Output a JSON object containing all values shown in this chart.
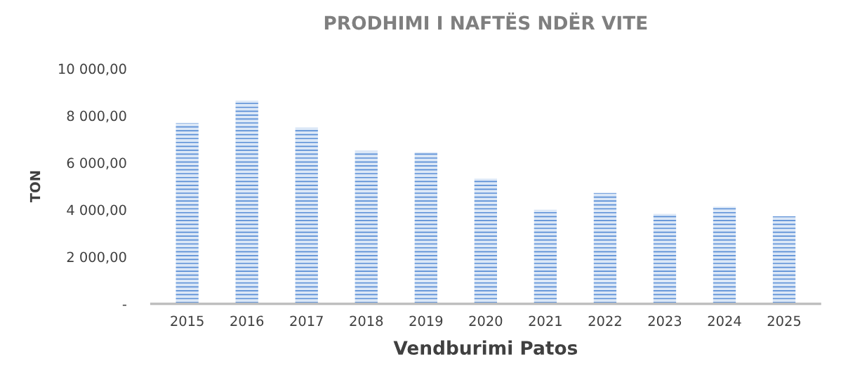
{
  "chart_data": {
    "type": "bar",
    "title": "PRODHIMI I NAFTËS NDËR VITE",
    "xlabel": "Vendburimi Patos",
    "ylabel": "TON",
    "categories": [
      "2015",
      "2016",
      "2017",
      "2018",
      "2019",
      "2020",
      "2021",
      "2022",
      "2023",
      "2024",
      "2025"
    ],
    "values": [
      7680,
      8640,
      7490,
      6500,
      6440,
      5320,
      4000,
      4710,
      3820,
      4130,
      3720
    ],
    "color": "#5b8fd6",
    "ylim": [
      0,
      10000
    ],
    "yticks": [
      {
        "value": 0,
        "label": "-"
      },
      {
        "value": 2000,
        "label": "2 000,00"
      },
      {
        "value": 4000,
        "label": "4 000,00"
      },
      {
        "value": 6000,
        "label": "6 000,00"
      },
      {
        "value": 8000,
        "label": "8 000,00"
      },
      {
        "value": 10000,
        "label": "10 000,00"
      }
    ],
    "grid": false,
    "legend": false
  }
}
